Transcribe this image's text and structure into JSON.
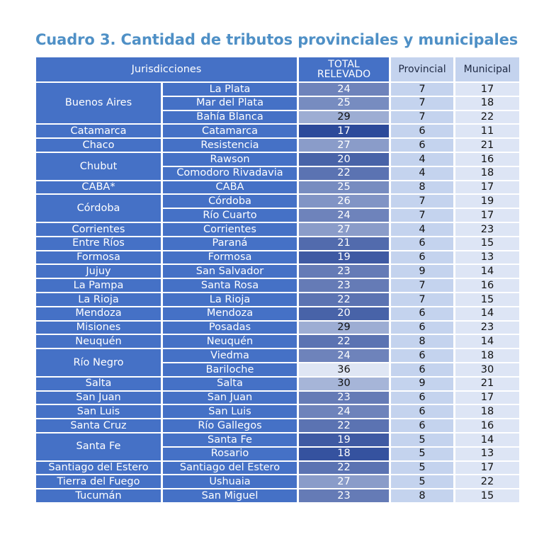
{
  "title": "Cuadro 3. Cantidad de tributos provinciales y municipales",
  "headers": {
    "jurisdicciones": "Jurisdicciones",
    "total_line1": "TOTAL",
    "total_line2": "RELEVADO",
    "provincial": "Provincial",
    "municipal": "Municipal"
  },
  "provinces": [
    {
      "name": "Buenos Aires",
      "rows": 3
    },
    {
      "name": "Catamarca",
      "rows": 1
    },
    {
      "name": "Chaco",
      "rows": 1
    },
    {
      "name": "Chubut",
      "rows": 2
    },
    {
      "name": "CABA*",
      "rows": 1
    },
    {
      "name": "Córdoba",
      "rows": 2
    },
    {
      "name": "Corrientes",
      "rows": 1
    },
    {
      "name": "Entre Ríos",
      "rows": 1
    },
    {
      "name": "Formosa",
      "rows": 1
    },
    {
      "name": "Jujuy",
      "rows": 1
    },
    {
      "name": "La Pampa",
      "rows": 1
    },
    {
      "name": "La Rioja",
      "rows": 1
    },
    {
      "name": "Mendoza",
      "rows": 1
    },
    {
      "name": "Misiones",
      "rows": 1
    },
    {
      "name": "Neuquén",
      "rows": 1
    },
    {
      "name": "Río Negro",
      "rows": 2
    },
    {
      "name": "Salta",
      "rows": 1
    },
    {
      "name": "San Juan",
      "rows": 1
    },
    {
      "name": "San Luis",
      "rows": 1
    },
    {
      "name": "Santa Cruz",
      "rows": 1
    },
    {
      "name": "Santa Fe",
      "rows": 2
    },
    {
      "name": "Santiago del Estero",
      "rows": 1
    },
    {
      "name": "Tierra del Fuego",
      "rows": 1
    },
    {
      "name": "Tucumán",
      "rows": 1
    }
  ],
  "rows": [
    {
      "city": "La Plata",
      "total": "24",
      "provincial": "7",
      "municipal": "17"
    },
    {
      "city": "Mar del Plata",
      "total": "25",
      "provincial": "7",
      "municipal": "18"
    },
    {
      "city": "Bahía Blanca",
      "total": "29",
      "provincial": "7",
      "municipal": "22"
    },
    {
      "city": "Catamarca",
      "total": "17",
      "provincial": "6",
      "municipal": "11"
    },
    {
      "city": "Resistencia",
      "total": "27",
      "provincial": "6",
      "municipal": "21"
    },
    {
      "city": "Rawson",
      "total": "20",
      "provincial": "4",
      "municipal": "16"
    },
    {
      "city": "Comodoro Rivadavia",
      "total": "22",
      "provincial": "4",
      "municipal": "18"
    },
    {
      "city": "CABA",
      "total": "25",
      "provincial": "8",
      "municipal": "17"
    },
    {
      "city": "Córdoba",
      "total": "26",
      "provincial": "7",
      "municipal": "19"
    },
    {
      "city": "Río Cuarto",
      "total": "24",
      "provincial": "7",
      "municipal": "17"
    },
    {
      "city": "Corrientes",
      "total": "27",
      "provincial": "4",
      "municipal": "23"
    },
    {
      "city": "Paraná",
      "total": "21",
      "provincial": "6",
      "municipal": "15"
    },
    {
      "city": "Formosa",
      "total": "19",
      "provincial": "6",
      "municipal": "13"
    },
    {
      "city": "San Salvador",
      "total": "23",
      "provincial": "9",
      "municipal": "14"
    },
    {
      "city": "Santa Rosa",
      "total": "23",
      "provincial": "7",
      "municipal": "16"
    },
    {
      "city": "La Rioja",
      "total": "22",
      "provincial": "7",
      "municipal": "15"
    },
    {
      "city": "Mendoza",
      "total": "20",
      "provincial": "6",
      "municipal": "14"
    },
    {
      "city": "Posadas",
      "total": "29",
      "provincial": "6",
      "municipal": "23"
    },
    {
      "city": "Neuquén",
      "total": "22",
      "provincial": "8",
      "municipal": "14"
    },
    {
      "city": "Viedma",
      "total": "24",
      "provincial": "6",
      "municipal": "18"
    },
    {
      "city": "Bariloche",
      "total": "36",
      "provincial": "6",
      "municipal": "30"
    },
    {
      "city": "Salta",
      "total": "30",
      "provincial": "9",
      "municipal": "21"
    },
    {
      "city": "San Juan",
      "total": "23",
      "provincial": "6",
      "municipal": "17"
    },
    {
      "city": "San Luis",
      "total": "24",
      "provincial": "6",
      "municipal": "18"
    },
    {
      "city": "Río Gallegos",
      "total": "22",
      "provincial": "6",
      "municipal": "16"
    },
    {
      "city": "Santa Fe",
      "total": "19",
      "provincial": "5",
      "municipal": "14"
    },
    {
      "city": "Rosario",
      "total": "18",
      "provincial": "5",
      "municipal": "13"
    },
    {
      "city": "Santiago del Estero",
      "total": "22",
      "provincial": "5",
      "municipal": "17"
    },
    {
      "city": "Ushuaia",
      "total": "27",
      "provincial": "5",
      "municipal": "22"
    },
    {
      "city": "San Miguel",
      "total": "23",
      "provincial": "8",
      "municipal": "15"
    }
  ],
  "colors": {
    "title": "#4f90c6",
    "header_blue": "#4571c6",
    "provincial_bg": "#c4d3ee",
    "municipal_bg": "#dde5f5",
    "heat_dark": "#2c4a9a",
    "heat_light": "#dfe6f4"
  }
}
